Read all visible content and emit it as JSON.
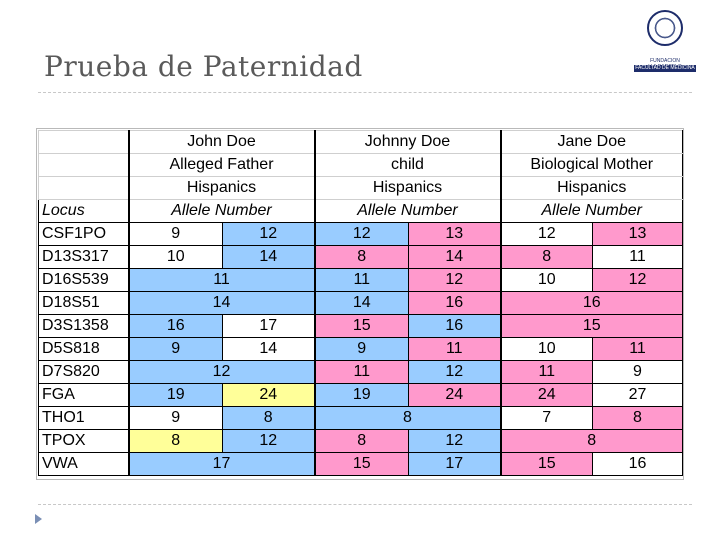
{
  "slide": {
    "title": "Prueba de Paternidad"
  },
  "logo": {
    "line1": "FUNDACION H.A.BARCELO",
    "line2": "FACULTAD DE MEDICINA"
  },
  "table": {
    "persons": [
      {
        "name": "John Doe",
        "role": "Alleged Father",
        "group": "Hispanics",
        "allele_header": "Allele Number"
      },
      {
        "name": "Johnny Doe",
        "role": "child",
        "group": "Hispanics",
        "allele_header": "Allele Number"
      },
      {
        "name": "Jane Doe",
        "role": "Biological Mother",
        "group": "Hispanics",
        "allele_header": "Allele Number"
      }
    ],
    "locus_header": "Locus",
    "colors": {
      "blue": "#99ccff",
      "pink": "#ff99cc",
      "yellow": "#ffff99",
      "white": "#ffffff"
    },
    "rows": [
      {
        "locus": "CSF1PO",
        "father": [
          {
            "v": "9",
            "c": "white"
          },
          {
            "v": "12",
            "c": "blue"
          }
        ],
        "child": [
          {
            "v": "12",
            "c": "blue"
          },
          {
            "v": "13",
            "c": "pink"
          }
        ],
        "mother": [
          {
            "v": "12",
            "c": "white"
          },
          {
            "v": "13",
            "c": "pink"
          }
        ]
      },
      {
        "locus": "D13S317",
        "father": [
          {
            "v": "10",
            "c": "white"
          },
          {
            "v": "14",
            "c": "blue"
          }
        ],
        "child": [
          {
            "v": "8",
            "c": "pink"
          },
          {
            "v": "14",
            "c": "pink"
          }
        ],
        "mother": [
          {
            "v": "8",
            "c": "pink"
          },
          {
            "v": "11",
            "c": "white"
          }
        ]
      },
      {
        "locus": "D16S539",
        "father": [
          {
            "v": "11",
            "c": "blue"
          }
        ],
        "child": [
          {
            "v": "11",
            "c": "blue"
          },
          {
            "v": "12",
            "c": "pink"
          }
        ],
        "mother": [
          {
            "v": "10",
            "c": "white"
          },
          {
            "v": "12",
            "c": "pink"
          }
        ]
      },
      {
        "locus": "D18S51",
        "father": [
          {
            "v": "14",
            "c": "blue"
          }
        ],
        "child": [
          {
            "v": "14",
            "c": "blue"
          },
          {
            "v": "16",
            "c": "pink"
          }
        ],
        "mother": [
          {
            "v": "16",
            "c": "pink"
          }
        ]
      },
      {
        "locus": "D3S1358",
        "father": [
          {
            "v": "16",
            "c": "blue"
          },
          {
            "v": "17",
            "c": "white"
          }
        ],
        "child": [
          {
            "v": "15",
            "c": "pink"
          },
          {
            "v": "16",
            "c": "blue"
          }
        ],
        "mother": [
          {
            "v": "15",
            "c": "pink"
          }
        ]
      },
      {
        "locus": "D5S818",
        "father": [
          {
            "v": "9",
            "c": "blue"
          },
          {
            "v": "14",
            "c": "white"
          }
        ],
        "child": [
          {
            "v": "9",
            "c": "blue"
          },
          {
            "v": "11",
            "c": "pink"
          }
        ],
        "mother": [
          {
            "v": "10",
            "c": "white"
          },
          {
            "v": "11",
            "c": "pink"
          }
        ]
      },
      {
        "locus": "D7S820",
        "father": [
          {
            "v": "12",
            "c": "blue"
          }
        ],
        "child": [
          {
            "v": "11",
            "c": "pink"
          },
          {
            "v": "12",
            "c": "blue"
          }
        ],
        "mother": [
          {
            "v": "11",
            "c": "pink"
          },
          {
            "v": "9",
            "c": "white"
          }
        ]
      },
      {
        "locus": "FGA",
        "father": [
          {
            "v": "19",
            "c": "blue"
          },
          {
            "v": "24",
            "c": "yellow"
          }
        ],
        "child": [
          {
            "v": "19",
            "c": "blue"
          },
          {
            "v": "24",
            "c": "pink"
          }
        ],
        "mother": [
          {
            "v": "24",
            "c": "pink"
          },
          {
            "v": "27",
            "c": "white"
          }
        ]
      },
      {
        "locus": "THO1",
        "father": [
          {
            "v": "9",
            "c": "white"
          },
          {
            "v": "8",
            "c": "blue"
          }
        ],
        "child": [
          {
            "v": "8",
            "c": "blue"
          }
        ],
        "mother": [
          {
            "v": "7",
            "c": "white"
          },
          {
            "v": "8",
            "c": "pink"
          }
        ]
      },
      {
        "locus": "TPOX",
        "father": [
          {
            "v": "8",
            "c": "yellow"
          },
          {
            "v": "12",
            "c": "blue"
          }
        ],
        "child": [
          {
            "v": "8",
            "c": "pink"
          },
          {
            "v": "12",
            "c": "blue"
          }
        ],
        "mother": [
          {
            "v": "8",
            "c": "pink"
          }
        ]
      },
      {
        "locus": "VWA",
        "father": [
          {
            "v": "17",
            "c": "blue"
          }
        ],
        "child": [
          {
            "v": "15",
            "c": "pink"
          },
          {
            "v": "17",
            "c": "blue"
          }
        ],
        "mother": [
          {
            "v": "15",
            "c": "pink"
          },
          {
            "v": "16",
            "c": "white"
          }
        ]
      }
    ]
  }
}
